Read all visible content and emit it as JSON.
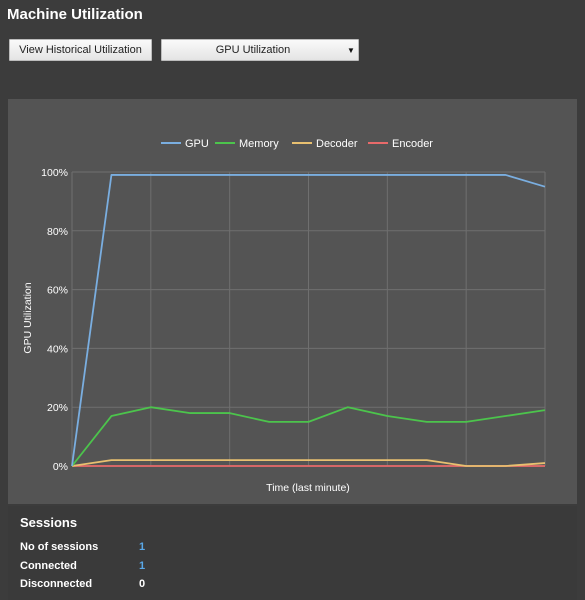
{
  "header": {
    "title": "Machine Utilization"
  },
  "toolbar": {
    "history_button": "View Historical Utilization",
    "view_select": {
      "selected": "GPU Utilization"
    }
  },
  "chart_data": {
    "type": "line",
    "xlabel": "Time (last minute)",
    "ylabel": "GPU Utilization",
    "ylim": [
      0,
      100
    ],
    "yticks": [
      "0%",
      "20%",
      "40%",
      "60%",
      "80%",
      "100%"
    ],
    "x": [
      0,
      1,
      2,
      3,
      4,
      5,
      6,
      7,
      8,
      9,
      10,
      11,
      12
    ],
    "legend_position": "top-center",
    "grid": true,
    "series": [
      {
        "name": "GPU",
        "color": "#7aaee0",
        "values": [
          0,
          99,
          99,
          99,
          99,
          99,
          99,
          99,
          99,
          99,
          99,
          99,
          95
        ]
      },
      {
        "name": "Memory",
        "color": "#4cc44c",
        "values": [
          0,
          17,
          20,
          18,
          18,
          15,
          15,
          20,
          17,
          15,
          15,
          17,
          19
        ]
      },
      {
        "name": "Decoder",
        "color": "#e8c070",
        "values": [
          0,
          2,
          2,
          2,
          2,
          2,
          2,
          2,
          2,
          2,
          0,
          0,
          1
        ]
      },
      {
        "name": "Encoder",
        "color": "#e86a6a",
        "values": [
          0,
          0,
          0,
          0,
          0,
          0,
          0,
          0,
          0,
          0,
          0,
          0,
          0
        ]
      }
    ]
  },
  "sessions": {
    "title": "Sessions",
    "rows": [
      {
        "label": "No of sessions",
        "value": "1"
      },
      {
        "label": "Connected",
        "value": "1"
      },
      {
        "label": "Disconnected",
        "value": "0"
      }
    ]
  }
}
